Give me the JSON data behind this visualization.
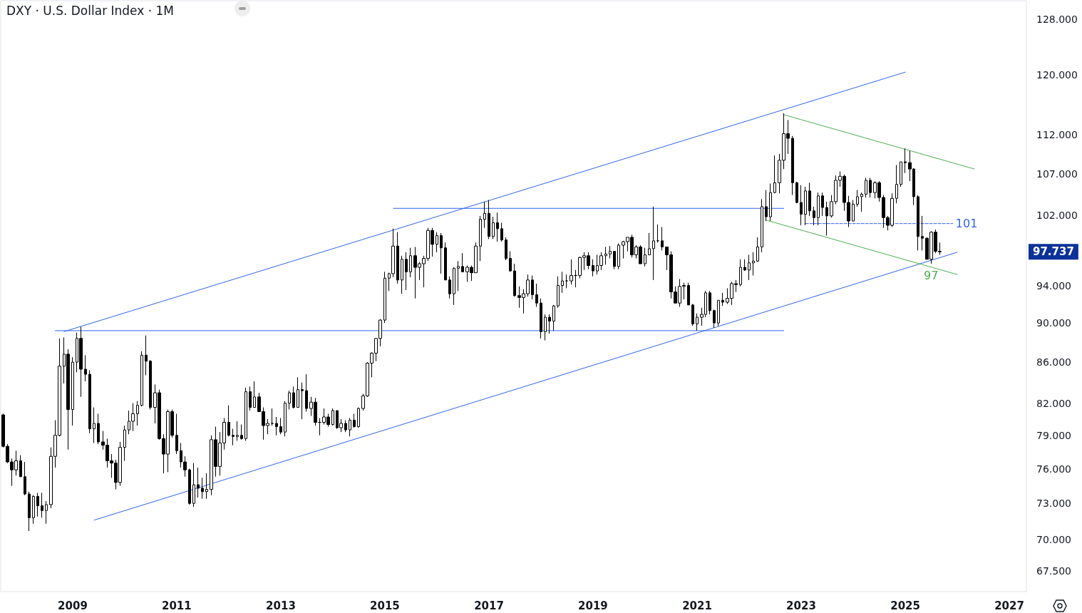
{
  "chart_data": {
    "type": "candlestick",
    "title": "DXY · U.S. Dollar Index · 1M",
    "log": true,
    "xlim": [
      "2007-08-15",
      "2027-05"
    ],
    "xticks": [
      "2009",
      "2011",
      "2013",
      "2015",
      "2017",
      "2019",
      "2021",
      "2023",
      "2025",
      "2027"
    ],
    "ylim": [
      65.9,
      130.8
    ],
    "yticks": [
      {
        "value": 67.5,
        "label": "67.500"
      },
      {
        "value": 70,
        "label": "70.000"
      },
      {
        "value": 73,
        "label": "73.000"
      },
      {
        "value": 76,
        "label": "76.000"
      },
      {
        "value": 79,
        "label": "79.000"
      },
      {
        "value": 82,
        "label": "82.000"
      },
      {
        "value": 86,
        "label": "86.000"
      },
      {
        "value": 90,
        "label": "90.000"
      },
      {
        "value": 94,
        "label": "94.000"
      },
      {
        "value": 102,
        "label": "102.000"
      },
      {
        "value": 107,
        "label": "107.000"
      },
      {
        "value": 112,
        "label": "112.000"
      },
      {
        "value": 120,
        "label": "120.000"
      },
      {
        "value": 128,
        "label": "128.000"
      }
    ],
    "x": [
      "2007-09",
      "2007-10",
      "2007-11",
      "2007-12",
      "2008-01",
      "2008-02",
      "2008-03",
      "2008-04",
      "2008-05",
      "2008-06",
      "2008-07",
      "2008-08",
      "2008-09",
      "2008-10",
      "2008-11",
      "2008-12",
      "2009-01",
      "2009-02",
      "2009-03",
      "2009-04",
      "2009-05",
      "2009-06",
      "2009-07",
      "2009-08",
      "2009-09",
      "2009-10",
      "2009-11",
      "2009-12",
      "2010-01",
      "2010-02",
      "2010-03",
      "2010-04",
      "2010-05",
      "2010-06",
      "2010-07",
      "2010-08",
      "2010-09",
      "2010-10",
      "2010-11",
      "2010-12",
      "2011-01",
      "2011-02",
      "2011-03",
      "2011-04",
      "2011-05",
      "2011-06",
      "2011-07",
      "2011-08",
      "2011-09",
      "2011-10",
      "2011-11",
      "2011-12",
      "2012-01",
      "2012-02",
      "2012-03",
      "2012-04",
      "2012-05",
      "2012-06",
      "2012-07",
      "2012-08",
      "2012-09",
      "2012-10",
      "2012-11",
      "2012-12",
      "2013-01",
      "2013-02",
      "2013-03",
      "2013-04",
      "2013-05",
      "2013-06",
      "2013-07",
      "2013-08",
      "2013-09",
      "2013-10",
      "2013-11",
      "2013-12",
      "2014-01",
      "2014-02",
      "2014-03",
      "2014-04",
      "2014-05",
      "2014-06",
      "2014-07",
      "2014-08",
      "2014-09",
      "2014-10",
      "2014-11",
      "2014-12",
      "2015-01",
      "2015-02",
      "2015-03",
      "2015-04",
      "2015-05",
      "2015-06",
      "2015-07",
      "2015-08",
      "2015-09",
      "2015-10",
      "2015-11",
      "2015-12",
      "2016-01",
      "2016-02",
      "2016-03",
      "2016-04",
      "2016-05",
      "2016-06",
      "2016-07",
      "2016-08",
      "2016-09",
      "2016-10",
      "2016-11",
      "2016-12",
      "2017-01",
      "2017-02",
      "2017-03",
      "2017-04",
      "2017-05",
      "2017-06",
      "2017-07",
      "2017-08",
      "2017-09",
      "2017-10",
      "2017-11",
      "2017-12",
      "2018-01",
      "2018-02",
      "2018-03",
      "2018-04",
      "2018-05",
      "2018-06",
      "2018-07",
      "2018-08",
      "2018-09",
      "2018-10",
      "2018-11",
      "2018-12",
      "2019-01",
      "2019-02",
      "2019-03",
      "2019-04",
      "2019-05",
      "2019-06",
      "2019-07",
      "2019-08",
      "2019-09",
      "2019-10",
      "2019-11",
      "2019-12",
      "2020-01",
      "2020-02",
      "2020-03",
      "2020-04",
      "2020-05",
      "2020-06",
      "2020-07",
      "2020-08",
      "2020-09",
      "2020-10",
      "2020-11",
      "2020-12",
      "2021-01",
      "2021-02",
      "2021-03",
      "2021-04",
      "2021-05",
      "2021-06",
      "2021-07",
      "2021-08",
      "2021-09",
      "2021-10",
      "2021-11",
      "2021-12",
      "2022-01",
      "2022-02",
      "2022-03",
      "2022-04",
      "2022-05",
      "2022-06",
      "2022-07",
      "2022-08",
      "2022-09",
      "2022-10",
      "2022-11",
      "2022-12",
      "2023-01",
      "2023-02",
      "2023-03",
      "2023-04",
      "2023-05",
      "2023-06",
      "2023-07",
      "2023-08",
      "2023-09",
      "2023-10",
      "2023-11",
      "2023-12",
      "2024-01",
      "2024-02",
      "2024-03",
      "2024-04",
      "2024-05",
      "2024-06",
      "2024-07",
      "2024-08",
      "2024-09",
      "2024-10",
      "2024-11",
      "2024-12",
      "2025-01",
      "2025-02",
      "2025-03",
      "2025-04",
      "2025-05",
      "2025-06",
      "2025-07",
      "2025-08",
      "2025-09"
    ],
    "ohlc": [
      [
        80.9,
        81.0,
        77.9,
        78.0
      ],
      [
        78.0,
        78.2,
        76.5,
        76.6
      ],
      [
        76.6,
        76.9,
        74.5,
        75.9
      ],
      [
        75.9,
        77.6,
        75.4,
        76.7
      ],
      [
        76.7,
        77.2,
        75.3,
        75.3
      ],
      [
        75.3,
        76.6,
        73.7,
        73.8
      ],
      [
        73.8,
        74.0,
        70.7,
        71.8
      ],
      [
        71.8,
        73.7,
        71.3,
        73.6
      ],
      [
        73.6,
        73.9,
        71.9,
        72.8
      ],
      [
        72.8,
        73.9,
        71.8,
        72.4
      ],
      [
        72.4,
        73.2,
        71.3,
        72.9
      ],
      [
        72.9,
        77.9,
        72.6,
        77.1
      ],
      [
        77.1,
        80.4,
        76.1,
        79.0
      ],
      [
        79.0,
        88.4,
        78.9,
        85.6
      ],
      [
        85.6,
        88.5,
        83.9,
        86.8
      ],
      [
        86.8,
        87.3,
        77.7,
        81.4
      ],
      [
        81.4,
        86.5,
        79.9,
        86.0
      ],
      [
        86.0,
        89.0,
        85.0,
        88.4
      ],
      [
        88.4,
        89.6,
        82.6,
        85.3
      ],
      [
        85.3,
        86.7,
        84.1,
        84.8
      ],
      [
        84.8,
        85.2,
        79.2,
        79.6
      ],
      [
        79.6,
        81.6,
        78.3,
        80.1
      ],
      [
        80.1,
        81.0,
        78.2,
        78.4
      ],
      [
        78.4,
        79.4,
        77.7,
        78.1
      ],
      [
        78.1,
        78.7,
        76.1,
        76.7
      ],
      [
        76.7,
        77.3,
        75.2,
        76.5
      ],
      [
        76.5,
        76.8,
        74.2,
        74.8
      ],
      [
        74.8,
        78.4,
        74.5,
        77.9
      ],
      [
        77.9,
        79.9,
        76.7,
        79.5
      ],
      [
        79.5,
        81.3,
        79.1,
        80.3
      ],
      [
        80.3,
        82.0,
        79.4,
        81.0
      ],
      [
        81.0,
        82.2,
        79.9,
        81.8
      ],
      [
        81.8,
        87.1,
        81.7,
        86.7
      ],
      [
        86.7,
        88.7,
        84.7,
        86.1
      ],
      [
        86.1,
        86.2,
        81.4,
        81.6
      ],
      [
        81.6,
        83.8,
        80.1,
        83.0
      ],
      [
        83.0,
        83.3,
        78.6,
        78.7
      ],
      [
        78.7,
        79.1,
        75.6,
        77.3
      ],
      [
        77.3,
        81.4,
        75.7,
        81.2
      ],
      [
        81.2,
        81.4,
        78.8,
        79.0
      ],
      [
        79.0,
        81.0,
        77.3,
        77.6
      ],
      [
        77.6,
        78.3,
        76.1,
        76.6
      ],
      [
        76.6,
        77.1,
        75.3,
        75.9
      ],
      [
        75.9,
        76.0,
        72.9,
        73.0
      ],
      [
        73.0,
        76.5,
        72.7,
        74.6
      ],
      [
        74.6,
        76.1,
        73.5,
        74.3
      ],
      [
        74.3,
        75.2,
        73.4,
        74.0
      ],
      [
        74.0,
        75.6,
        73.4,
        74.2
      ],
      [
        74.2,
        79.0,
        73.7,
        78.6
      ],
      [
        78.6,
        79.8,
        75.3,
        76.2
      ],
      [
        76.2,
        79.3,
        75.4,
        78.3
      ],
      [
        78.3,
        80.6,
        77.7,
        80.2
      ],
      [
        80.2,
        81.8,
        78.9,
        79.0
      ],
      [
        79.0,
        79.6,
        78.1,
        78.9
      ],
      [
        78.9,
        80.3,
        78.5,
        79.0
      ],
      [
        79.0,
        80.0,
        78.6,
        78.7
      ],
      [
        78.7,
        83.5,
        78.5,
        83.1
      ],
      [
        83.1,
        83.6,
        81.3,
        81.6
      ],
      [
        81.6,
        84.1,
        81.6,
        82.6
      ],
      [
        82.6,
        83.0,
        81.2,
        81.2
      ],
      [
        81.2,
        81.6,
        78.6,
        79.9
      ],
      [
        79.9,
        80.5,
        79.1,
        80.1
      ],
      [
        80.1,
        81.5,
        79.9,
        80.1
      ],
      [
        80.1,
        80.7,
        79.0,
        79.8
      ],
      [
        79.8,
        80.6,
        79.1,
        79.3
      ],
      [
        79.3,
        82.2,
        78.9,
        82.0
      ],
      [
        82.0,
        83.2,
        81.4,
        83.0
      ],
      [
        83.0,
        83.6,
        81.5,
        81.6
      ],
      [
        81.6,
        84.5,
        81.6,
        83.3
      ],
      [
        83.3,
        84.0,
        80.5,
        83.2
      ],
      [
        83.2,
        84.8,
        81.2,
        81.5
      ],
      [
        81.5,
        82.6,
        80.8,
        82.1
      ],
      [
        82.1,
        82.5,
        79.9,
        80.2
      ],
      [
        80.2,
        80.6,
        79.0,
        80.2
      ],
      [
        80.2,
        81.5,
        80.0,
        80.7
      ],
      [
        80.7,
        81.0,
        79.8,
        80.0
      ],
      [
        80.0,
        81.5,
        79.9,
        81.3
      ],
      [
        81.3,
        81.3,
        79.6,
        79.7
      ],
      [
        79.7,
        80.5,
        79.3,
        80.1
      ],
      [
        80.1,
        80.4,
        79.3,
        79.5
      ],
      [
        79.5,
        80.6,
        78.9,
        80.4
      ],
      [
        80.4,
        81.0,
        79.7,
        79.8
      ],
      [
        79.8,
        81.6,
        79.7,
        81.5
      ],
      [
        81.5,
        82.9,
        81.3,
        82.7
      ],
      [
        82.7,
        86.0,
        82.6,
        85.9
      ],
      [
        85.9,
        87.0,
        84.5,
        86.9
      ],
      [
        86.9,
        88.4,
        86.1,
        88.4
      ],
      [
        88.4,
        90.4,
        87.6,
        90.3
      ],
      [
        90.3,
        95.5,
        90.0,
        94.8
      ],
      [
        94.8,
        95.4,
        93.4,
        95.3
      ],
      [
        95.3,
        100.4,
        94.9,
        98.4
      ],
      [
        98.4,
        100.0,
        94.2,
        94.6
      ],
      [
        94.6,
        97.3,
        93.1,
        96.9
      ],
      [
        96.9,
        97.7,
        93.5,
        95.5
      ],
      [
        95.5,
        98.2,
        94.9,
        97.3
      ],
      [
        97.3,
        98.3,
        92.6,
        96.0
      ],
      [
        96.0,
        96.6,
        94.6,
        96.4
      ],
      [
        96.4,
        97.3,
        93.8,
        97.0
      ],
      [
        97.0,
        100.5,
        96.7,
        100.2
      ],
      [
        100.2,
        100.5,
        97.2,
        98.6
      ],
      [
        98.6,
        100.0,
        97.7,
        99.6
      ],
      [
        99.6,
        99.9,
        95.3,
        98.2
      ],
      [
        98.2,
        98.8,
        94.6,
        94.6
      ],
      [
        94.6,
        95.0,
        92.6,
        93.1
      ],
      [
        93.1,
        96.0,
        91.9,
        95.9
      ],
      [
        95.9,
        96.7,
        93.4,
        96.1
      ],
      [
        96.1,
        97.6,
        95.5,
        95.5
      ],
      [
        95.5,
        96.2,
        94.4,
        96.0
      ],
      [
        96.0,
        96.2,
        94.5,
        95.4
      ],
      [
        95.4,
        98.8,
        95.4,
        98.4
      ],
      [
        98.4,
        101.9,
        96.7,
        101.5
      ],
      [
        101.5,
        103.6,
        100.5,
        102.2
      ],
      [
        102.2,
        103.8,
        99.2,
        99.5
      ],
      [
        99.5,
        101.8,
        99.2,
        101.1
      ],
      [
        101.1,
        102.3,
        98.9,
        100.4
      ],
      [
        100.4,
        101.1,
        98.9,
        99.1
      ],
      [
        99.1,
        99.4,
        96.8,
        97.0
      ],
      [
        97.0,
        97.8,
        95.5,
        95.6
      ],
      [
        95.6,
        96.4,
        92.8,
        92.9
      ],
      [
        92.9,
        93.9,
        91.6,
        92.7
      ],
      [
        92.7,
        93.6,
        91.0,
        93.1
      ],
      [
        93.1,
        95.2,
        92.8,
        94.6
      ],
      [
        94.6,
        95.1,
        92.5,
        93.0
      ],
      [
        93.0,
        94.2,
        91.7,
        92.1
      ],
      [
        92.1,
        92.6,
        88.4,
        89.1
      ],
      [
        89.1,
        90.9,
        88.2,
        90.6
      ],
      [
        90.6,
        90.9,
        88.9,
        90.2
      ],
      [
        90.2,
        91.9,
        89.2,
        91.8
      ],
      [
        91.8,
        95.0,
        91.6,
        94.0
      ],
      [
        94.0,
        95.5,
        93.2,
        94.5
      ],
      [
        94.5,
        95.2,
        93.7,
        94.5
      ],
      [
        94.5,
        96.9,
        94.1,
        95.1
      ],
      [
        95.1,
        95.7,
        93.8,
        95.1
      ],
      [
        95.1,
        97.2,
        94.8,
        97.1
      ],
      [
        97.1,
        97.7,
        95.7,
        97.3
      ],
      [
        97.3,
        97.7,
        95.8,
        96.2
      ],
      [
        96.2,
        96.9,
        95.0,
        95.6
      ],
      [
        95.6,
        97.4,
        95.2,
        96.2
      ],
      [
        96.2,
        97.7,
        95.7,
        97.3
      ],
      [
        97.3,
        98.3,
        96.3,
        97.5
      ],
      [
        97.5,
        98.4,
        97.0,
        97.8
      ],
      [
        97.8,
        97.8,
        95.8,
        96.1
      ],
      [
        96.1,
        98.7,
        95.8,
        98.5
      ],
      [
        98.5,
        99.0,
        97.0,
        98.9
      ],
      [
        98.9,
        99.4,
        97.8,
        99.4
      ],
      [
        99.4,
        99.7,
        97.1,
        97.4
      ],
      [
        97.4,
        98.5,
        97.0,
        98.3
      ],
      [
        98.3,
        98.5,
        96.4,
        96.4
      ],
      [
        96.4,
        98.2,
        96.1,
        97.4
      ],
      [
        97.4,
        99.9,
        97.4,
        98.1
      ],
      [
        98.1,
        103.0,
        94.6,
        99.0
      ],
      [
        99.0,
        100.9,
        98.8,
        99.0
      ],
      [
        99.0,
        100.6,
        97.9,
        98.3
      ],
      [
        98.3,
        98.3,
        95.7,
        97.4
      ],
      [
        97.4,
        97.8,
        92.6,
        93.3
      ],
      [
        93.3,
        93.9,
        92.1,
        92.1
      ],
      [
        92.1,
        94.7,
        91.7,
        93.9
      ],
      [
        93.9,
        94.3,
        92.5,
        94.0
      ],
      [
        94.0,
        94.3,
        91.9,
        91.9
      ],
      [
        91.9,
        92.0,
        89.7,
        89.9
      ],
      [
        89.9,
        91.0,
        89.2,
        90.6
      ],
      [
        90.6,
        91.6,
        89.7,
        90.9
      ],
      [
        90.9,
        93.4,
        90.6,
        93.2
      ],
      [
        93.2,
        93.4,
        90.9,
        91.3
      ],
      [
        91.3,
        91.4,
        89.5,
        90.0
      ],
      [
        90.0,
        92.4,
        89.7,
        92.4
      ],
      [
        92.4,
        93.2,
        91.8,
        92.2
      ],
      [
        92.2,
        93.7,
        92.0,
        92.6
      ],
      [
        92.6,
        94.4,
        91.9,
        94.2
      ],
      [
        94.2,
        94.6,
        93.3,
        94.1
      ],
      [
        94.1,
        96.9,
        93.9,
        96.0
      ],
      [
        96.0,
        96.9,
        95.6,
        95.7
      ],
      [
        95.7,
        97.4,
        94.6,
        96.5
      ],
      [
        96.5,
        97.7,
        95.1,
        96.7
      ],
      [
        96.7,
        99.4,
        96.6,
        98.3
      ],
      [
        98.3,
        103.9,
        97.7,
        103.0
      ],
      [
        103.0,
        105.0,
        101.3,
        101.8
      ],
      [
        101.8,
        105.8,
        101.3,
        104.7
      ],
      [
        104.7,
        109.3,
        104.6,
        105.9
      ],
      [
        105.9,
        109.5,
        104.6,
        108.7
      ],
      [
        108.7,
        114.8,
        107.6,
        112.1
      ],
      [
        112.1,
        113.9,
        109.5,
        111.5
      ],
      [
        111.5,
        111.8,
        104.4,
        105.9
      ],
      [
        105.9,
        106.0,
        103.4,
        103.5
      ],
      [
        103.5,
        105.6,
        100.8,
        102.1
      ],
      [
        102.1,
        105.4,
        100.8,
        104.9
      ],
      [
        104.9,
        105.9,
        101.9,
        102.5
      ],
      [
        102.5,
        103.0,
        100.8,
        101.7
      ],
      [
        101.7,
        104.7,
        100.8,
        104.3
      ],
      [
        104.3,
        104.7,
        101.9,
        102.9
      ],
      [
        102.9,
        103.6,
        99.6,
        101.9
      ],
      [
        101.9,
        104.4,
        101.7,
        103.6
      ],
      [
        103.6,
        106.8,
        103.3,
        106.2
      ],
      [
        106.2,
        107.3,
        105.4,
        106.7
      ],
      [
        106.7,
        106.9,
        102.5,
        103.5
      ],
      [
        103.5,
        104.3,
        100.6,
        101.3
      ],
      [
        101.3,
        103.8,
        101.3,
        103.3
      ],
      [
        103.3,
        105.0,
        103.0,
        104.2
      ],
      [
        104.2,
        104.7,
        102.4,
        104.5
      ],
      [
        104.5,
        106.5,
        104.1,
        106.2
      ],
      [
        106.2,
        106.5,
        104.1,
        104.7
      ],
      [
        104.7,
        106.1,
        104.0,
        105.9
      ],
      [
        105.9,
        106.1,
        103.6,
        104.1
      ],
      [
        104.1,
        104.4,
        100.5,
        101.7
      ],
      [
        101.7,
        101.9,
        100.2,
        100.8
      ],
      [
        100.8,
        104.6,
        100.6,
        104.0
      ],
      [
        104.0,
        108.1,
        103.4,
        105.7
      ],
      [
        105.7,
        108.5,
        105.4,
        108.5
      ],
      [
        108.5,
        110.2,
        107.1,
        108.4
      ],
      [
        108.4,
        109.9,
        106.1,
        107.6
      ],
      [
        107.6,
        107.7,
        103.2,
        104.2
      ],
      [
        104.2,
        104.4,
        97.9,
        99.5
      ],
      [
        99.5,
        101.9,
        97.9,
        99.3
      ],
      [
        99.3,
        99.4,
        96.9,
        96.9
      ],
      [
        96.9,
        100.1,
        96.4,
        100.0
      ],
      [
        100.0,
        100.3,
        97.6,
        97.8
      ],
      [
        97.8,
        98.8,
        97.4,
        97.737
      ]
    ],
    "series": [
      {
        "type": "line",
        "color": "#2f64f2",
        "x": [
          "2008-11",
          "2025-01"
        ],
        "values": [
          89.1,
          120.4
        ]
      },
      {
        "type": "line",
        "color": "#2f64f2",
        "x": [
          "2009-06",
          "2026-01"
        ],
        "values": [
          71.6,
          97.7
        ]
      },
      {
        "type": "line",
        "color": "#2f64f2",
        "x": [
          "2008-09",
          "2022-09"
        ],
        "values": [
          89.2,
          89.2
        ]
      },
      {
        "type": "line",
        "color": "#2f64f2",
        "x": [
          "2015-03",
          "2022-09"
        ],
        "values": [
          102.8,
          102.8
        ]
      },
      {
        "type": "line",
        "color": "#4caf50",
        "x": [
          "2022-09",
          "2026-05"
        ],
        "values": [
          114.6,
          107.6
        ]
      },
      {
        "type": "line",
        "color": "#4caf50",
        "x": [
          "2022-05",
          "2026-01"
        ],
        "values": [
          101.4,
          95.2
        ]
      },
      {
        "type": "line",
        "name": "101",
        "color": "#2f64f2",
        "line_style": "dashed",
        "x": [
          "2023-02",
          "2025-12"
        ],
        "values": [
          101,
          101
        ]
      }
    ],
    "annotations": [
      {
        "text": "97",
        "x": "2025-07",
        "y": 97
      },
      "97.737"
    ]
  }
}
